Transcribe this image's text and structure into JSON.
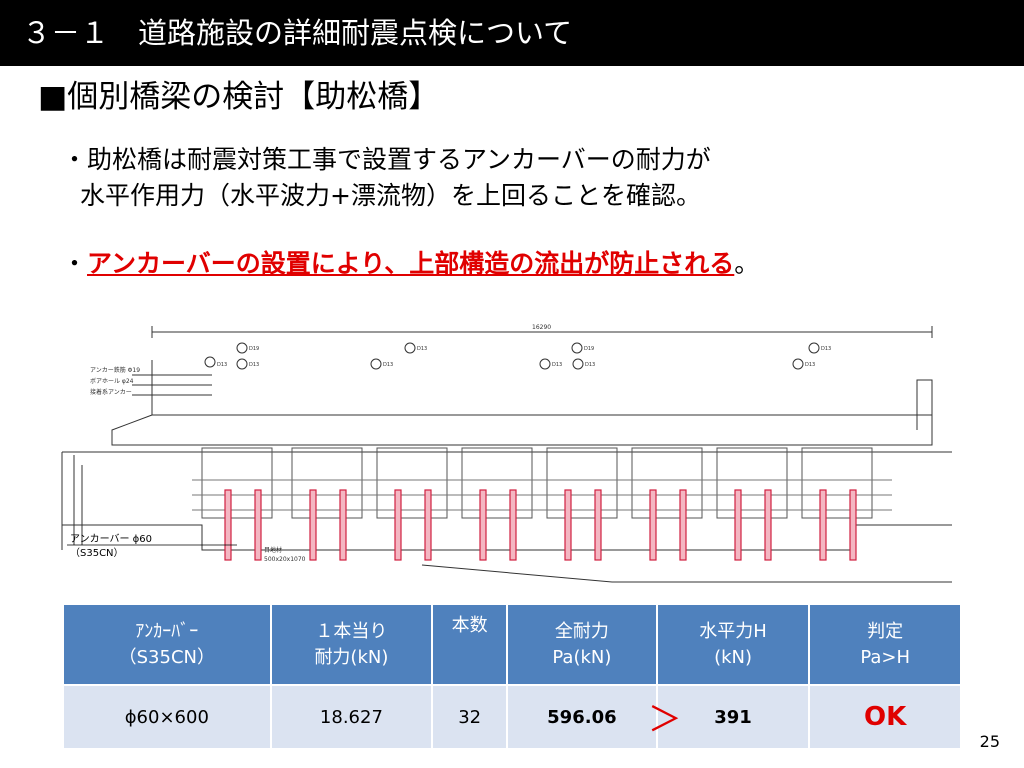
{
  "title": "３－１　道路施設の詳細耐震点検について",
  "section": "■個別橋梁の検討【助松橋】",
  "bullet1": {
    "line1": "・助松橋は耐震対策工事で設置するアンカーバーの耐力が",
    "line2": "水平作用力（水平波力+漂流物）を上回ることを確認。"
  },
  "bullet2": {
    "prefix": "・",
    "emphasis": "アンカーバーの設置により、上部構造の流出が防止される",
    "suffix": "。"
  },
  "drawing": {
    "total_length": "16290",
    "legend": [
      "アンカー鉄筋 Φ19",
      "ボアホール φ24",
      "接着系アンカー"
    ],
    "rebar_labels": [
      "D19",
      "D13",
      "D13",
      "D13",
      "D13",
      "D19",
      "D13",
      "D13",
      "D13",
      "D13"
    ],
    "anchor_label_1": "アンカーバー ϕ60",
    "anchor_label_2": "（S35CN）",
    "pad_labels": [
      "目地材",
      "500x20x1070"
    ]
  },
  "table": {
    "headers": [
      [
        "ｱﾝｶｰﾊﾞｰ",
        "（S35CN）"
      ],
      [
        "１本当り",
        "耐力(kN)"
      ],
      [
        "本数",
        ""
      ],
      [
        "全耐力",
        "Pa(kN)"
      ],
      [
        "水平力H",
        "(kN)"
      ],
      [
        "判定",
        "Pa>H"
      ]
    ],
    "row": {
      "spec": "ϕ60×600",
      "unit_strength": "18.627",
      "count": "32",
      "total": "596.06",
      "comparator": "＞",
      "horizontal": "391",
      "verdict": "OK"
    }
  },
  "page_number": "25"
}
